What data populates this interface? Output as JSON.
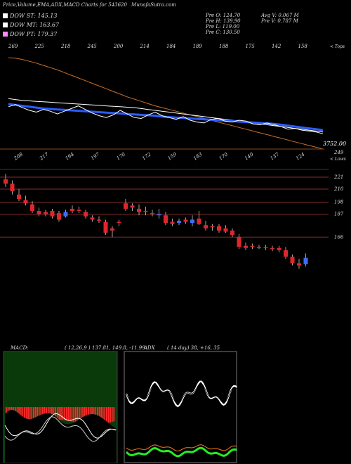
{
  "header": {
    "title": "Price,Volume,EMA,ADX,MACD Charts for 543620",
    "site": "MunafaSutra.com"
  },
  "legend": [
    {
      "label": "DOW ST: 145.13",
      "color": "#ffffff"
    },
    {
      "label": "DOW MT: 163.67",
      "color": "#ffffff"
    },
    {
      "label": "DOW PT: 179.37",
      "color": "#ff88ff"
    }
  ],
  "ohlc": {
    "open": "Pre  O: 124.70",
    "high": "Pre  H: 139.90",
    "low": "Pre  L: 119.00",
    "close": "Pre  C: 130.50",
    "avg_volume": "Avg V: 0.067 M",
    "prev_volume": "Pre  V: 0.787 M"
  },
  "price_panel": {
    "top_labels": [
      "269",
      "225",
      "218",
      "245",
      "200",
      "214",
      "184",
      "189",
      "188",
      "175",
      "142",
      "158"
    ],
    "tops_tag": "< Tops",
    "bottom_labels": [
      "208",
      "217",
      "194",
      "197",
      "170",
      "172",
      "159",
      "183",
      "170",
      "140",
      "137",
      "124"
    ],
    "lows_tag": "< Lows",
    "volume_label": "3752.00"
  },
  "chart_data": [
    {
      "type": "candlestick",
      "y_axis_labels": [
        "249",
        "221",
        "210",
        "198",
        "187",
        "166"
      ],
      "support_resistance_levels": [
        221,
        210,
        198,
        187,
        166
      ],
      "candles": [
        {
          "o": 215,
          "h": 224,
          "l": 212,
          "c": 219,
          "dir": "down"
        },
        {
          "o": 215,
          "h": 218,
          "l": 205,
          "c": 208,
          "dir": "down"
        },
        {
          "o": 205,
          "h": 210,
          "l": 199,
          "c": 201,
          "dir": "down"
        },
        {
          "o": 200,
          "h": 204,
          "l": 195,
          "c": 197,
          "dir": "down"
        },
        {
          "o": 196,
          "h": 199,
          "l": 188,
          "c": 190,
          "dir": "down"
        },
        {
          "o": 190,
          "h": 193,
          "l": 185,
          "c": 187,
          "dir": "down"
        },
        {
          "o": 189,
          "h": 191,
          "l": 185,
          "c": 187,
          "dir": "down"
        },
        {
          "o": 190,
          "h": 192,
          "l": 183,
          "c": 185,
          "dir": "down"
        },
        {
          "o": 188,
          "h": 190,
          "l": 180,
          "c": 182,
          "dir": "down"
        },
        {
          "o": 185,
          "h": 191,
          "l": 184,
          "c": 189,
          "dir": "up"
        },
        {
          "o": 192,
          "h": 195,
          "l": 188,
          "c": 190,
          "dir": "down"
        },
        {
          "o": 191,
          "h": 194,
          "l": 188,
          "c": 190,
          "dir": "down"
        },
        {
          "o": 189,
          "h": 191,
          "l": 183,
          "c": 185,
          "dir": "down"
        },
        {
          "o": 184,
          "h": 186,
          "l": 180,
          "c": 182,
          "dir": "down"
        },
        {
          "o": 182,
          "h": 185,
          "l": 179,
          "c": 182,
          "dir": "down"
        },
        {
          "o": 180,
          "h": 182,
          "l": 168,
          "c": 170,
          "dir": "down"
        },
        {
          "o": 172,
          "h": 176,
          "l": 166,
          "c": 174,
          "dir": "down"
        },
        {
          "o": 179,
          "h": 182,
          "l": 176,
          "c": 180,
          "dir": "down"
        },
        {
          "o": 197,
          "h": 201,
          "l": 190,
          "c": 192,
          "dir": "down"
        },
        {
          "o": 193,
          "h": 197,
          "l": 190,
          "c": 195,
          "dir": "down"
        },
        {
          "o": 192,
          "h": 196,
          "l": 186,
          "c": 189,
          "dir": "down"
        },
        {
          "o": 190,
          "h": 194,
          "l": 186,
          "c": 189,
          "dir": "down"
        },
        {
          "o": 188,
          "h": 191,
          "l": 185,
          "c": 188,
          "dir": "down"
        },
        {
          "o": 187,
          "h": 192,
          "l": 183,
          "c": 186,
          "dir": "up"
        },
        {
          "o": 186,
          "h": 189,
          "l": 177,
          "c": 179,
          "dir": "down"
        },
        {
          "o": 180,
          "h": 183,
          "l": 176,
          "c": 178,
          "dir": "down"
        },
        {
          "o": 179,
          "h": 183,
          "l": 177,
          "c": 181,
          "dir": "up"
        },
        {
          "o": 182,
          "h": 184,
          "l": 178,
          "c": 180,
          "dir": "down"
        },
        {
          "o": 179,
          "h": 186,
          "l": 176,
          "c": 182,
          "dir": "up"
        },
        {
          "o": 183,
          "h": 190,
          "l": 177,
          "c": 178,
          "dir": "down"
        },
        {
          "o": 177,
          "h": 181,
          "l": 172,
          "c": 174,
          "dir": "down"
        },
        {
          "o": 176,
          "h": 178,
          "l": 172,
          "c": 175,
          "dir": "down"
        },
        {
          "o": 176,
          "h": 178,
          "l": 170,
          "c": 172,
          "dir": "down"
        },
        {
          "o": 174,
          "h": 177,
          "l": 170,
          "c": 171,
          "dir": "down"
        },
        {
          "o": 172,
          "h": 174,
          "l": 166,
          "c": 168,
          "dir": "down"
        },
        {
          "o": 166,
          "h": 169,
          "l": 155,
          "c": 157,
          "dir": "down"
        },
        {
          "o": 158,
          "h": 161,
          "l": 154,
          "c": 156,
          "dir": "down"
        },
        {
          "o": 157,
          "h": 160,
          "l": 155,
          "c": 158,
          "dir": "down"
        },
        {
          "o": 157,
          "h": 159,
          "l": 155,
          "c": 156,
          "dir": "down"
        },
        {
          "o": 156,
          "h": 159,
          "l": 154,
          "c": 157,
          "dir": "down"
        },
        {
          "o": 156,
          "h": 158,
          "l": 153,
          "c": 155,
          "dir": "down"
        },
        {
          "o": 156,
          "h": 158,
          "l": 152,
          "c": 154,
          "dir": "down"
        },
        {
          "o": 154,
          "h": 157,
          "l": 146,
          "c": 148,
          "dir": "down"
        },
        {
          "o": 148,
          "h": 150,
          "l": 140,
          "c": 142,
          "dir": "down"
        },
        {
          "o": 142,
          "h": 146,
          "l": 137,
          "c": 140,
          "dir": "down"
        },
        {
          "o": 141,
          "h": 151,
          "l": 139,
          "c": 147,
          "dir": "up"
        }
      ],
      "ema_lines": {
        "long_orange": [
          339,
          338,
          335,
          331,
          327,
          322,
          317,
          312,
          306,
          300,
          294,
          288,
          282,
          276,
          270,
          264,
          258,
          252,
          247,
          242,
          237,
          232,
          228,
          224,
          220,
          216,
          212,
          208,
          204,
          200,
          196,
          192,
          188,
          184,
          180,
          176,
          172,
          168,
          164,
          160,
          156,
          152,
          148,
          144,
          140,
          136
        ],
        "white_upper": [
          248,
          246,
          244,
          243,
          242,
          241,
          240,
          239,
          238,
          237,
          236,
          235,
          234,
          233,
          232,
          231,
          230,
          229,
          228,
          226,
          224,
          222,
          220,
          218,
          216,
          214,
          212,
          210,
          208,
          206,
          204,
          202,
          200,
          198,
          196,
          194,
          192,
          190,
          188,
          186,
          184,
          182,
          180,
          178,
          176,
          174
        ],
        "blue": [
          236,
          234,
          232,
          230,
          228,
          226,
          225,
          224,
          223,
          222,
          221,
          220,
          219,
          218,
          217,
          216,
          215,
          214,
          213,
          212,
          211,
          210,
          208,
          207,
          206,
          205,
          204,
          203,
          202,
          201,
          200,
          199,
          198,
          197,
          196,
          195,
          194,
          193,
          192,
          190,
          188,
          186,
          184,
          182,
          180,
          178
        ],
        "white_lower": [
          230,
          235,
          228,
          222,
          218,
          224,
          220,
          214,
          220,
          226,
          232,
          224,
          216,
          210,
          206,
          212,
          222,
          214,
          206,
          204,
          212,
          218,
          210,
          206,
          202,
          208,
          200,
          196,
          194,
          202,
          204,
          198,
          196,
          200,
          198,
          192,
          190,
          194,
          190,
          186,
          180,
          182,
          178,
          176,
          174,
          170
        ]
      }
    },
    {
      "type": "macd",
      "title": "MACD:",
      "params": "( 12,26,9 ) 137.81,  149.8,  -11.99"
    },
    {
      "type": "adx",
      "title": "ADX",
      "params": "( 14  day) 38,  +16,  35"
    }
  ]
}
